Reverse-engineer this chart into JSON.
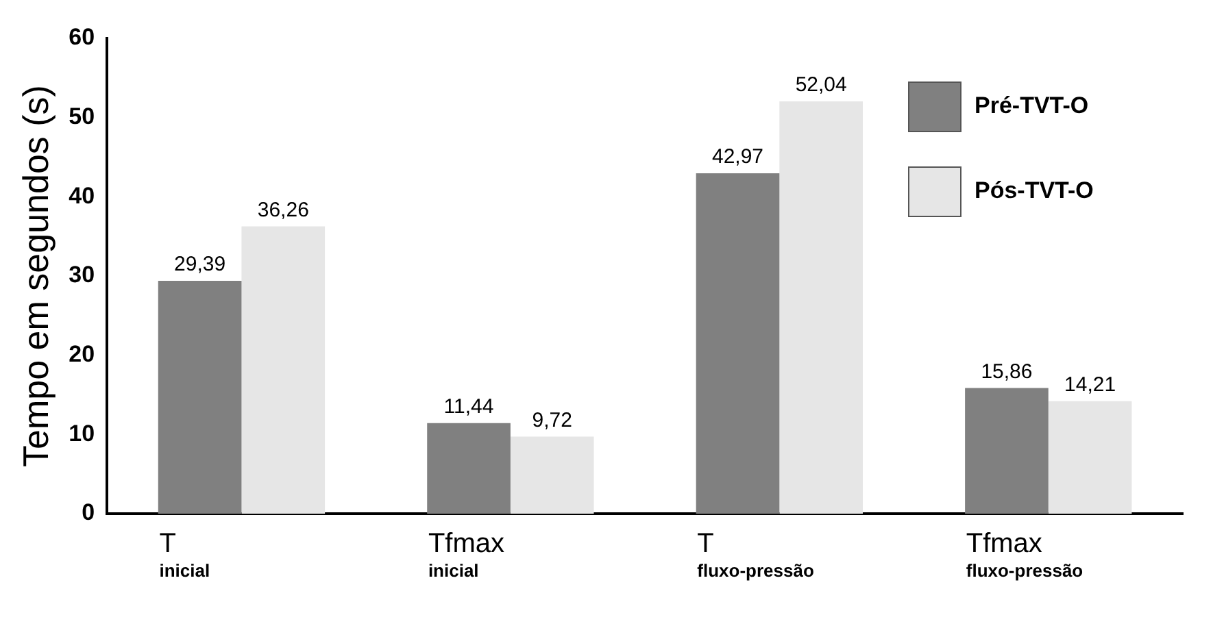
{
  "chart_data": {
    "type": "bar",
    "ylabel": "Tempo em segundos (s)",
    "categories": [
      "T$_{inicial}$",
      "Tfmax$_{inicial}$",
      "T$_{fluxo-pressão}$",
      "Tfmax$_{fluxo-pressão}$"
    ],
    "series": [
      {
        "name": "Pré-TVT-O",
        "color": "#808080",
        "values": [
          29.39,
          11.44,
          42.97,
          15.86
        ],
        "value_labels": [
          "29,39",
          "11,44",
          "42,97",
          "15,86"
        ]
      },
      {
        "name": "Pós-TVT-O",
        "color": "#e6e6e6",
        "values": [
          36.26,
          9.72,
          52.04,
          14.21
        ],
        "value_labels": [
          "36,26",
          "9,72",
          "52,04",
          "14,21"
        ]
      }
    ],
    "ylim": [
      0,
      60
    ],
    "yticks": [
      0,
      10,
      20,
      30,
      40,
      50,
      60
    ],
    "grid": false,
    "legend": "top right"
  }
}
